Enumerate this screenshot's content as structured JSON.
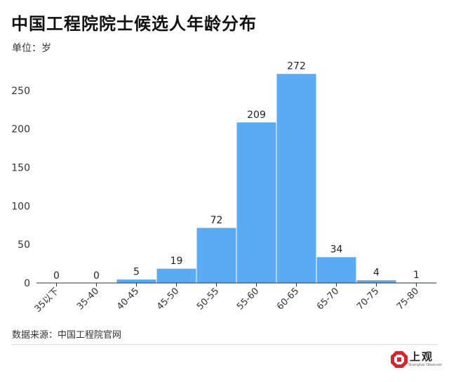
{
  "header": {
    "title": "中国工程院院士候选人年龄分布",
    "unit": "单位：岁"
  },
  "footer": {
    "source": "数据来源：中国工程院官网"
  },
  "logo": {
    "name": "上观",
    "subtitle": "Shanghai Observer"
  },
  "colors": {
    "bar": "#5aabf4",
    "axis": "#333333",
    "grid": "#e6e6e6",
    "logo_red": "#d1282d"
  },
  "chart_data": {
    "type": "bar",
    "title": "中国工程院院士候选人年龄分布",
    "ylabel": "单位：岁",
    "xlabel": "",
    "categories": [
      "35以下",
      "35-40",
      "40-45",
      "45-50",
      "50-55",
      "55-60",
      "60-65",
      "65-70",
      "70-75",
      "75-80"
    ],
    "values": [
      0,
      0,
      5,
      19,
      72,
      209,
      272,
      34,
      4,
      1
    ],
    "yticks": [
      0,
      50,
      100,
      150,
      200,
      250
    ],
    "ylim": [
      0,
      290
    ],
    "grid": false,
    "data_labels": true,
    "legend": "none"
  }
}
